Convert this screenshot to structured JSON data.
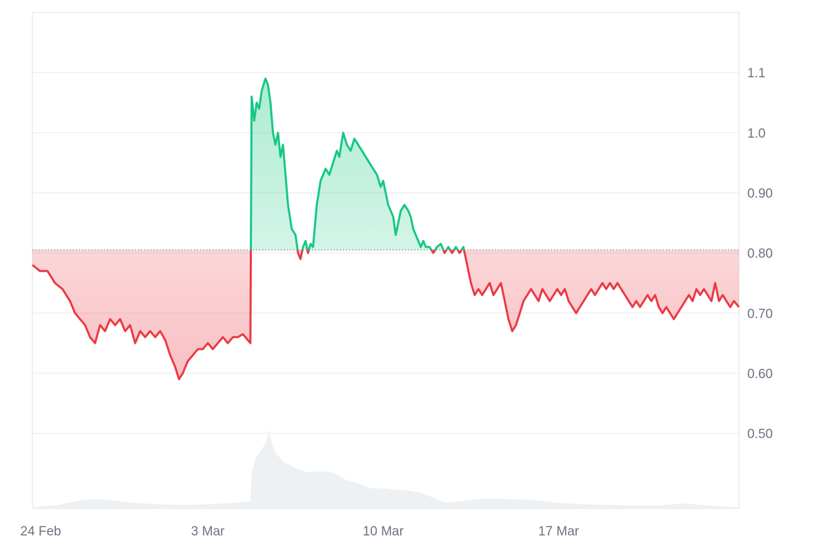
{
  "chart_data": {
    "type": "line",
    "baseline": 0.805,
    "ylim": [
      0.375,
      1.2
    ],
    "y_ticks": [
      {
        "value": 1.1,
        "label": "1.1"
      },
      {
        "value": 1.0,
        "label": "1.0"
      },
      {
        "value": 0.9,
        "label": "0.90"
      },
      {
        "value": 0.8,
        "label": "0.80"
      },
      {
        "value": 0.7,
        "label": "0.70"
      },
      {
        "value": 0.6,
        "label": "0.60"
      },
      {
        "value": 0.5,
        "label": "0.50"
      }
    ],
    "x_ticks": [
      {
        "day": 0,
        "label": "24 Feb"
      },
      {
        "day": 7,
        "label": "3 Mar"
      },
      {
        "day": 14,
        "label": "10 Mar"
      },
      {
        "day": 21,
        "label": "17 Mar"
      }
    ],
    "xlim": [
      0,
      28.2
    ],
    "colors": {
      "up": "#16c784",
      "down": "#ea3943",
      "volume": "#eef1f4",
      "grid": "#ececec",
      "baseline": "#777777"
    },
    "price": [
      [
        0.0,
        0.78
      ],
      [
        0.3,
        0.77
      ],
      [
        0.6,
        0.77
      ],
      [
        0.9,
        0.75
      ],
      [
        1.2,
        0.74
      ],
      [
        1.5,
        0.72
      ],
      [
        1.7,
        0.7
      ],
      [
        1.9,
        0.69
      ],
      [
        2.1,
        0.68
      ],
      [
        2.3,
        0.66
      ],
      [
        2.5,
        0.65
      ],
      [
        2.7,
        0.68
      ],
      [
        2.9,
        0.67
      ],
      [
        3.1,
        0.69
      ],
      [
        3.3,
        0.68
      ],
      [
        3.5,
        0.69
      ],
      [
        3.7,
        0.67
      ],
      [
        3.9,
        0.68
      ],
      [
        4.1,
        0.65
      ],
      [
        4.3,
        0.67
      ],
      [
        4.5,
        0.66
      ],
      [
        4.7,
        0.67
      ],
      [
        4.9,
        0.66
      ],
      [
        5.1,
        0.67
      ],
      [
        5.3,
        0.655
      ],
      [
        5.5,
        0.63
      ],
      [
        5.7,
        0.61
      ],
      [
        5.85,
        0.59
      ],
      [
        6.0,
        0.6
      ],
      [
        6.2,
        0.62
      ],
      [
        6.4,
        0.63
      ],
      [
        6.6,
        0.64
      ],
      [
        6.8,
        0.64
      ],
      [
        7.0,
        0.65
      ],
      [
        7.2,
        0.64
      ],
      [
        7.4,
        0.65
      ],
      [
        7.6,
        0.66
      ],
      [
        7.8,
        0.65
      ],
      [
        8.0,
        0.66
      ],
      [
        8.2,
        0.66
      ],
      [
        8.4,
        0.665
      ],
      [
        8.6,
        0.655
      ],
      [
        8.7,
        0.65
      ],
      [
        8.75,
        1.06
      ],
      [
        8.85,
        1.02
      ],
      [
        8.95,
        1.05
      ],
      [
        9.05,
        1.04
      ],
      [
        9.15,
        1.07
      ],
      [
        9.3,
        1.09
      ],
      [
        9.4,
        1.08
      ],
      [
        9.5,
        1.05
      ],
      [
        9.6,
        1.0
      ],
      [
        9.7,
        0.98
      ],
      [
        9.8,
        1.0
      ],
      [
        9.9,
        0.96
      ],
      [
        10.0,
        0.98
      ],
      [
        10.1,
        0.93
      ],
      [
        10.2,
        0.88
      ],
      [
        10.35,
        0.84
      ],
      [
        10.5,
        0.83
      ],
      [
        10.6,
        0.8
      ],
      [
        10.7,
        0.79
      ],
      [
        10.8,
        0.81
      ],
      [
        10.9,
        0.82
      ],
      [
        11.0,
        0.8
      ],
      [
        11.1,
        0.815
      ],
      [
        11.2,
        0.81
      ],
      [
        11.35,
        0.88
      ],
      [
        11.5,
        0.92
      ],
      [
        11.7,
        0.94
      ],
      [
        11.85,
        0.93
      ],
      [
        12.0,
        0.95
      ],
      [
        12.15,
        0.97
      ],
      [
        12.25,
        0.96
      ],
      [
        12.4,
        1.0
      ],
      [
        12.55,
        0.98
      ],
      [
        12.7,
        0.97
      ],
      [
        12.85,
        0.99
      ],
      [
        13.0,
        0.98
      ],
      [
        13.15,
        0.97
      ],
      [
        13.3,
        0.96
      ],
      [
        13.45,
        0.95
      ],
      [
        13.6,
        0.94
      ],
      [
        13.75,
        0.93
      ],
      [
        13.9,
        0.91
      ],
      [
        14.0,
        0.92
      ],
      [
        14.1,
        0.9
      ],
      [
        14.2,
        0.88
      ],
      [
        14.3,
        0.87
      ],
      [
        14.4,
        0.86
      ],
      [
        14.5,
        0.83
      ],
      [
        14.6,
        0.85
      ],
      [
        14.7,
        0.87
      ],
      [
        14.85,
        0.88
      ],
      [
        15.0,
        0.87
      ],
      [
        15.1,
        0.86
      ],
      [
        15.2,
        0.84
      ],
      [
        15.3,
        0.83
      ],
      [
        15.4,
        0.82
      ],
      [
        15.5,
        0.81
      ],
      [
        15.6,
        0.82
      ],
      [
        15.7,
        0.81
      ],
      [
        15.85,
        0.81
      ],
      [
        16.0,
        0.8
      ],
      [
        16.15,
        0.81
      ],
      [
        16.3,
        0.815
      ],
      [
        16.45,
        0.8
      ],
      [
        16.6,
        0.81
      ],
      [
        16.75,
        0.8
      ],
      [
        16.9,
        0.81
      ],
      [
        17.05,
        0.8
      ],
      [
        17.2,
        0.81
      ],
      [
        17.35,
        0.78
      ],
      [
        17.5,
        0.75
      ],
      [
        17.65,
        0.73
      ],
      [
        17.8,
        0.74
      ],
      [
        17.95,
        0.73
      ],
      [
        18.1,
        0.74
      ],
      [
        18.25,
        0.75
      ],
      [
        18.4,
        0.73
      ],
      [
        18.55,
        0.74
      ],
      [
        18.7,
        0.75
      ],
      [
        18.85,
        0.72
      ],
      [
        19.0,
        0.69
      ],
      [
        19.15,
        0.67
      ],
      [
        19.3,
        0.68
      ],
      [
        19.45,
        0.7
      ],
      [
        19.6,
        0.72
      ],
      [
        19.75,
        0.73
      ],
      [
        19.9,
        0.74
      ],
      [
        20.05,
        0.73
      ],
      [
        20.2,
        0.72
      ],
      [
        20.35,
        0.74
      ],
      [
        20.5,
        0.73
      ],
      [
        20.65,
        0.72
      ],
      [
        20.8,
        0.73
      ],
      [
        20.95,
        0.74
      ],
      [
        21.1,
        0.73
      ],
      [
        21.25,
        0.74
      ],
      [
        21.4,
        0.72
      ],
      [
        21.55,
        0.71
      ],
      [
        21.7,
        0.7
      ],
      [
        21.85,
        0.71
      ],
      [
        22.0,
        0.72
      ],
      [
        22.15,
        0.73
      ],
      [
        22.3,
        0.74
      ],
      [
        22.45,
        0.73
      ],
      [
        22.6,
        0.74
      ],
      [
        22.75,
        0.75
      ],
      [
        22.9,
        0.74
      ],
      [
        23.05,
        0.75
      ],
      [
        23.2,
        0.74
      ],
      [
        23.35,
        0.75
      ],
      [
        23.5,
        0.74
      ],
      [
        23.65,
        0.73
      ],
      [
        23.8,
        0.72
      ],
      [
        23.95,
        0.71
      ],
      [
        24.1,
        0.72
      ],
      [
        24.25,
        0.71
      ],
      [
        24.4,
        0.72
      ],
      [
        24.55,
        0.73
      ],
      [
        24.7,
        0.72
      ],
      [
        24.85,
        0.73
      ],
      [
        25.0,
        0.71
      ],
      [
        25.15,
        0.7
      ],
      [
        25.3,
        0.71
      ],
      [
        25.45,
        0.7
      ],
      [
        25.6,
        0.69
      ],
      [
        25.75,
        0.7
      ],
      [
        25.9,
        0.71
      ],
      [
        26.05,
        0.72
      ],
      [
        26.2,
        0.73
      ],
      [
        26.35,
        0.72
      ],
      [
        26.5,
        0.74
      ],
      [
        26.65,
        0.73
      ],
      [
        26.8,
        0.74
      ],
      [
        26.95,
        0.73
      ],
      [
        27.1,
        0.72
      ],
      [
        27.25,
        0.75
      ],
      [
        27.4,
        0.72
      ],
      [
        27.55,
        0.73
      ],
      [
        27.7,
        0.72
      ],
      [
        27.85,
        0.71
      ],
      [
        28.0,
        0.72
      ],
      [
        28.2,
        0.71
      ]
    ],
    "volume": [
      [
        0.0,
        0.002
      ],
      [
        1.0,
        0.005
      ],
      [
        2.0,
        0.012
      ],
      [
        2.5,
        0.013
      ],
      [
        3.0,
        0.012
      ],
      [
        4.0,
        0.008
      ],
      [
        5.0,
        0.006
      ],
      [
        6.0,
        0.005
      ],
      [
        7.0,
        0.006
      ],
      [
        8.0,
        0.008
      ],
      [
        8.7,
        0.01
      ],
      [
        8.75,
        0.05
      ],
      [
        8.9,
        0.07
      ],
      [
        9.1,
        0.08
      ],
      [
        9.3,
        0.09
      ],
      [
        9.45,
        0.11
      ],
      [
        9.6,
        0.085
      ],
      [
        9.75,
        0.075
      ],
      [
        9.9,
        0.07
      ],
      [
        10.0,
        0.065
      ],
      [
        10.3,
        0.06
      ],
      [
        10.6,
        0.055
      ],
      [
        11.0,
        0.05
      ],
      [
        11.5,
        0.052
      ],
      [
        12.0,
        0.05
      ],
      [
        12.5,
        0.04
      ],
      [
        13.0,
        0.035
      ],
      [
        13.5,
        0.028
      ],
      [
        14.0,
        0.028
      ],
      [
        14.5,
        0.026
      ],
      [
        15.0,
        0.025
      ],
      [
        15.5,
        0.022
      ],
      [
        16.0,
        0.015
      ],
      [
        16.5,
        0.008
      ],
      [
        17.0,
        0.01
      ],
      [
        17.5,
        0.012
      ],
      [
        18.0,
        0.014
      ],
      [
        19.0,
        0.013
      ],
      [
        20.0,
        0.012
      ],
      [
        21.0,
        0.008
      ],
      [
        22.0,
        0.006
      ],
      [
        23.0,
        0.005
      ],
      [
        24.0,
        0.004
      ],
      [
        25.0,
        0.004
      ],
      [
        25.5,
        0.006
      ],
      [
        26.0,
        0.007
      ],
      [
        26.5,
        0.006
      ],
      [
        27.0,
        0.004
      ],
      [
        28.0,
        0.002
      ],
      [
        28.2,
        0.002
      ]
    ]
  }
}
